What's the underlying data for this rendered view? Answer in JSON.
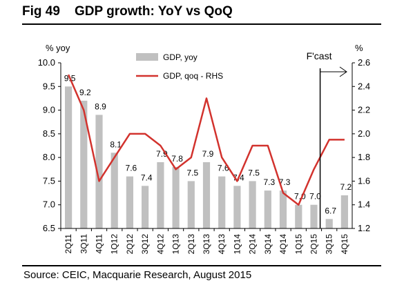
{
  "figure": {
    "number": "Fig 49",
    "title": "GDP growth: YoY vs QoQ",
    "source": "Source: CEIC, Macquarie Research, August 2015"
  },
  "chart_data": {
    "type": "bar",
    "categories": [
      "2Q11",
      "3Q11",
      "4Q11",
      "1Q12",
      "2Q12",
      "3Q12",
      "4Q12",
      "1Q13",
      "2Q13",
      "3Q13",
      "4Q13",
      "1Q14",
      "2Q14",
      "3Q14",
      "4Q14",
      "1Q15",
      "2Q15",
      "3Q15",
      "4Q15"
    ],
    "series": [
      {
        "name": "GDP, yoy",
        "kind": "bar",
        "axis": "left",
        "color": "#c0c0c0",
        "values": [
          9.5,
          9.2,
          8.9,
          8.1,
          7.6,
          7.4,
          7.9,
          7.8,
          7.5,
          7.9,
          7.6,
          7.4,
          7.5,
          7.3,
          7.3,
          7.0,
          7.0,
          6.7,
          7.2
        ],
        "labels": [
          "9.5",
          "9.2",
          "8.9",
          "8.1",
          "7.6",
          "7.4",
          "7.9",
          "7.8",
          "7.5",
          "7.9",
          "7.6",
          "7.4",
          "7.5",
          "7.3",
          "7.3",
          "7.0",
          "7.0",
          "6.7",
          "7.2"
        ]
      },
      {
        "name": "GDP, qoq - RHS",
        "kind": "line",
        "axis": "right",
        "color": "#d2322d",
        "values": [
          2.5,
          2.2,
          1.6,
          1.8,
          2.0,
          2.0,
          1.9,
          1.7,
          1.8,
          2.3,
          1.8,
          1.6,
          1.9,
          1.9,
          1.5,
          1.4,
          1.7,
          1.95,
          1.95
        ]
      }
    ],
    "ylabel_left": "% yoy",
    "ylabel_right": "%",
    "ylim_left": [
      6.5,
      10.0
    ],
    "ylim_right": [
      1.2,
      2.6
    ],
    "yticks_left": [
      "6.5",
      "7.0",
      "7.5",
      "8.0",
      "8.5",
      "9.0",
      "9.5",
      "10.0"
    ],
    "yticks_right": [
      "1.2",
      "1.4",
      "1.6",
      "1.8",
      "2.0",
      "2.2",
      "2.4",
      "2.6"
    ],
    "forecast_label": "F'cast",
    "forecast_start_index": 17,
    "legend_position": "top-center",
    "grid": false
  }
}
